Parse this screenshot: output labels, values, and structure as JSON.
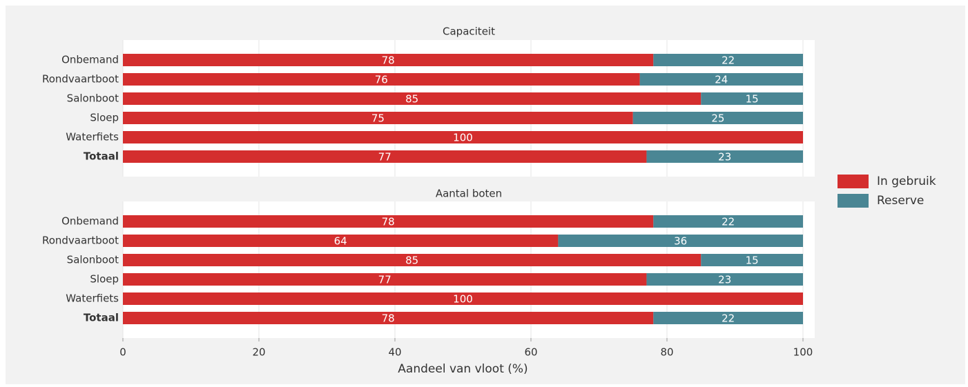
{
  "chart_data": [
    {
      "type": "bar",
      "title": "Capaciteit",
      "categories": [
        "Onbemand",
        "Rondvaartboot",
        "Salonboot",
        "Sloep",
        "Waterfiets",
        "Totaal"
      ],
      "series": [
        {
          "name": "In gebruik",
          "color": "#d42e2e",
          "values": [
            78,
            76,
            85,
            75,
            100,
            77
          ]
        },
        {
          "name": "Reserve",
          "color": "#4a8694",
          "values": [
            22,
            24,
            15,
            25,
            0,
            23
          ]
        }
      ],
      "xlim": [
        0,
        100
      ],
      "xticks": [
        0,
        20,
        40,
        60,
        80,
        100
      ],
      "grid": true
    },
    {
      "type": "bar",
      "title": "Aantal boten",
      "categories": [
        "Onbemand",
        "Rondvaartboot",
        "Salonboot",
        "Sloep",
        "Waterfiets",
        "Totaal"
      ],
      "series": [
        {
          "color": "#d42e2e",
          "values": [
            78,
            64,
            85,
            77,
            100,
            78
          ]
        },
        {
          "color": "#4a8694",
          "values": [
            22,
            36,
            15,
            23,
            0,
            22
          ]
        }
      ],
      "xlim": [
        0,
        100
      ],
      "xticks": [
        0,
        20,
        40,
        60,
        80,
        100
      ],
      "grid": true,
      "x_label": "Aandeel van vloot (%)"
    }
  ]
}
